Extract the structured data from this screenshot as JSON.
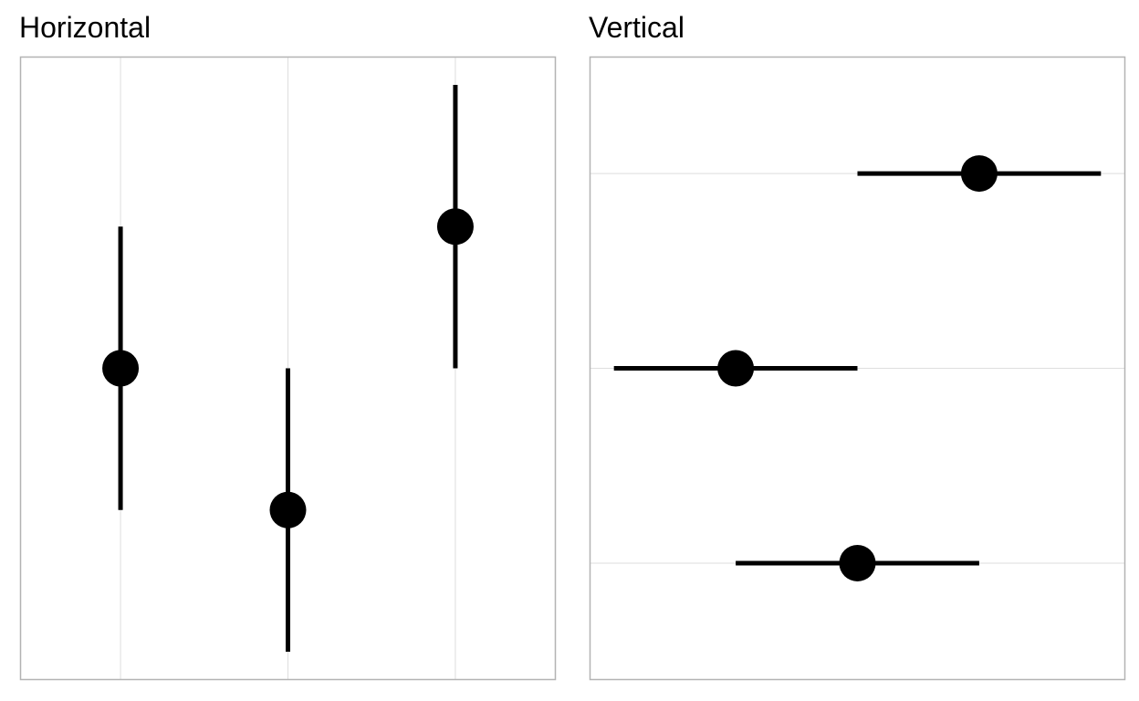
{
  "chart_data": [
    {
      "type": "pointrange",
      "title": "Horizontal",
      "orientation": "vertical-errorbars",
      "x": [
        1,
        2,
        3
      ],
      "y": [
        3,
        1,
        5
      ],
      "ymin": [
        1,
        -1,
        3
      ],
      "ymax": [
        5,
        3,
        7
      ],
      "xlim": [
        0.4,
        3.6
      ],
      "ylim": [
        -1.4,
        7.4
      ],
      "grid": "major-x",
      "axis_labels": "none",
      "colors": {
        "mark": "#000000",
        "grid": "#dedede",
        "border": "#b3b3b3"
      }
    },
    {
      "type": "pointrange",
      "title": "Vertical",
      "orientation": "horizontal-errorbars",
      "x": [
        5,
        3,
        4
      ],
      "xmin": [
        4,
        2,
        3
      ],
      "xmax": [
        6,
        4,
        5
      ],
      "y": [
        3,
        2,
        1
      ],
      "xlim": [
        1.8,
        6.2
      ],
      "ylim": [
        0.4,
        3.6
      ],
      "grid": "major-y",
      "axis_labels": "none",
      "colors": {
        "mark": "#000000",
        "grid": "#dedede",
        "border": "#b3b3b3"
      }
    }
  ]
}
